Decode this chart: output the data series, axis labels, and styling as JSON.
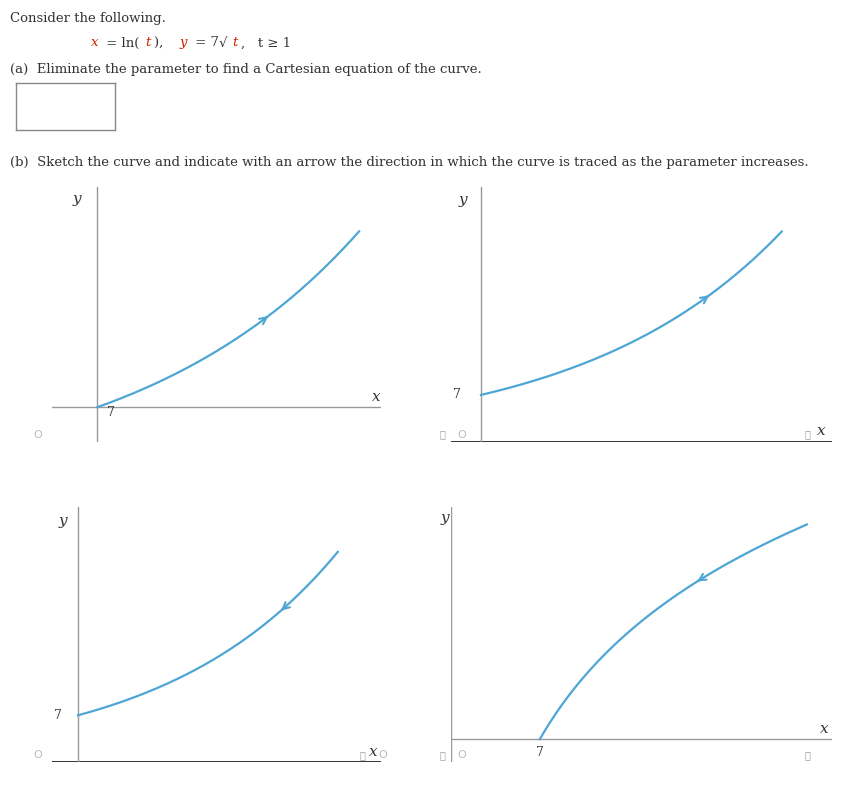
{
  "curve_color": "#4da6d4",
  "text_color": "#333333",
  "axis_color_light": "#aaaaaa",
  "axis_color_dark": "#111111",
  "title_text": "Consider the following.",
  "part_a_text": "(a)  Eliminate the parameter to find a Cartesian equation of the curve.",
  "part_b_text": "(b)  Sketch the curve and indicate with an arrow the direction in which the curve is traced as the parameter increases.",
  "eq_x_color": "#cc2200",
  "eq_text_color": "#444444"
}
